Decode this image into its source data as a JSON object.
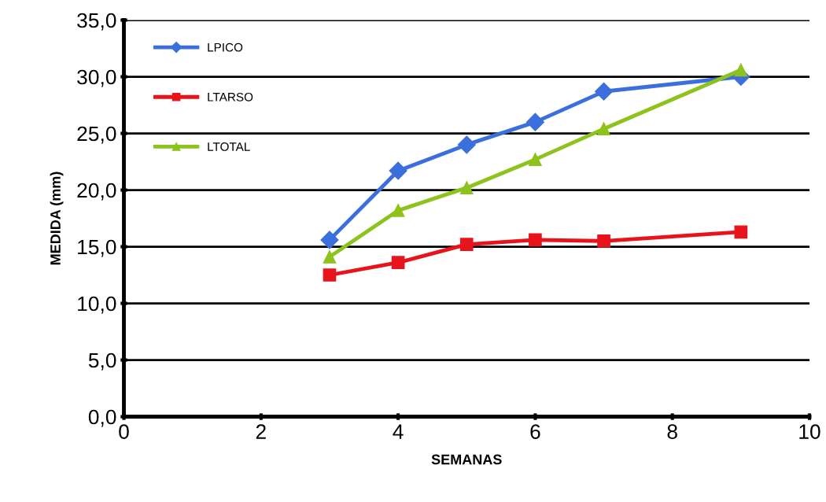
{
  "chart_data": {
    "type": "line",
    "xlabel": "SEMANAS",
    "ylabel": "MEDIDA (mm)",
    "x": [
      3,
      4,
      5,
      6,
      7,
      9
    ],
    "series": [
      {
        "name": "LPICO",
        "color": "#3b6fdc",
        "marker": "diamond",
        "values": [
          15.6,
          21.7,
          24.0,
          26.0,
          28.7,
          30.0
        ]
      },
      {
        "name": "LTARSO",
        "color": "#e8141c",
        "marker": "square",
        "values": [
          12.5,
          13.6,
          15.2,
          15.6,
          15.5,
          16.3
        ]
      },
      {
        "name": "LTOTAL",
        "color": "#8ec21c",
        "marker": "triangle",
        "values": [
          14.1,
          18.2,
          20.2,
          22.7,
          25.4,
          30.6
        ]
      }
    ],
    "xlim": [
      0,
      10
    ],
    "xticks": [
      0,
      2,
      4,
      6,
      8,
      10
    ],
    "ylim": [
      0,
      35
    ],
    "yticks": [
      {
        "value": 0,
        "label": "0,0"
      },
      {
        "value": 5,
        "label": "5,0"
      },
      {
        "value": 10,
        "label": "10,0"
      },
      {
        "value": 15,
        "label": "15,0"
      },
      {
        "value": 20,
        "label": "20,0"
      },
      {
        "value": 25,
        "label": "25,0"
      },
      {
        "value": 30,
        "label": "30,0"
      },
      {
        "value": 35,
        "label": "35,0"
      }
    ],
    "grid": "y",
    "legend": "top left",
    "line_style": "solid"
  }
}
